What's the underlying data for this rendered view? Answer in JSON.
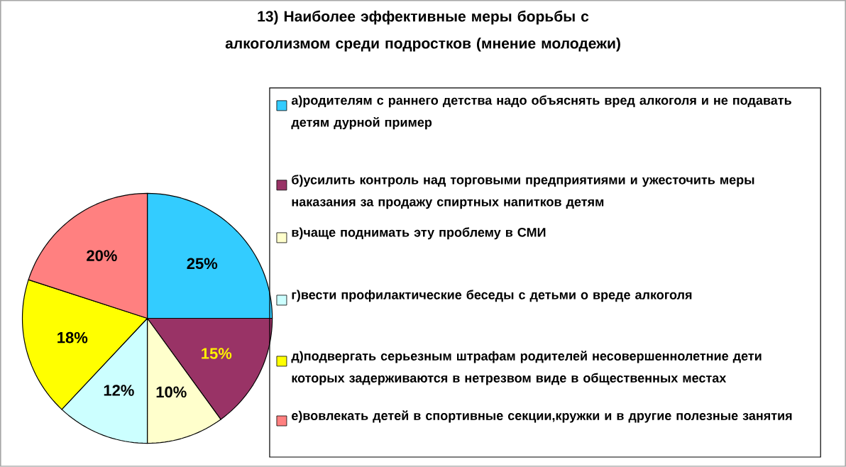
{
  "chart_data": {
    "type": "pie",
    "title": "13)  Наиболее эффективные меры  борьбы с    алкоголизмом среди подростков (мнение молодежи)",
    "categories": [
      "а)родителям с раннего детства  надо объяснять вред алкоголя и не подавать детям дурной пример",
      "б)усилить контроль над торговыми предприятиями и ужесточить меры наказания за продажу спиртных напитков детям",
      "в)чаще поднимать эту проблему в СМИ",
      "г)вести профилактические беседы с детьми о вреде алкоголя",
      "д)подвергать серьезным штрафам родителей несовершеннолетние дети которых задерживаются в нетрезвом виде в общественных местах",
      "е)вовлекать детей в спортивные секции,кружки и в другие полезные занятия"
    ],
    "values": [
      25,
      15,
      10,
      12,
      18,
      20
    ],
    "value_labels": [
      "25%",
      "15%",
      "10%",
      "12%",
      "18%",
      "20%"
    ],
    "colors": [
      "#33ccff",
      "#993366",
      "#ffffcc",
      "#ccffff",
      "#ffff00",
      "#ff8080"
    ],
    "legend": "right"
  }
}
